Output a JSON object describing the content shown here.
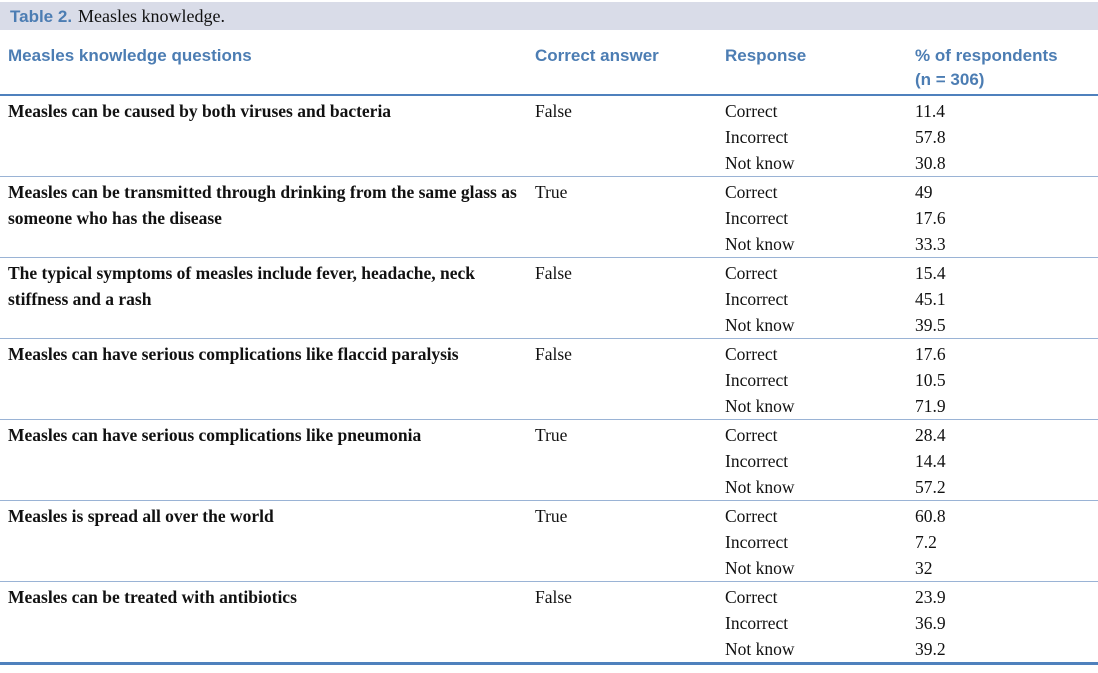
{
  "colors": {
    "accent_text": "#4c7db3",
    "rule_strong": "#4f81bd",
    "rule_light": "#9ab3d5",
    "caption_bg": "#d9dce8"
  },
  "caption": {
    "label": "Table 2.",
    "text": "Measles knowledge."
  },
  "table": {
    "headers": {
      "questions": "Measles knowledge questions",
      "correct_answer": "Correct answer",
      "response": "Response",
      "percent_line1": "% of respondents",
      "percent_line2": "(n = 306)"
    },
    "rows": [
      {
        "question": "Measles can be caused by both viruses and bacteria",
        "correct_answer": "False",
        "responses": [
          {
            "label": "Correct",
            "pct": "11.4"
          },
          {
            "label": "Incorrect",
            "pct": "57.8"
          },
          {
            "label": "Not know",
            "pct": "30.8"
          }
        ]
      },
      {
        "question": "Measles can be transmitted through drinking from the same glass as someone who has the disease",
        "correct_answer": "True",
        "responses": [
          {
            "label": "Correct",
            "pct": "49"
          },
          {
            "label": "Incorrect",
            "pct": "17.6"
          },
          {
            "label": "Not know",
            "pct": "33.3"
          }
        ]
      },
      {
        "question": "The typical symptoms of measles include fever, headache, neck stiffness and a rash",
        "correct_answer": "False",
        "responses": [
          {
            "label": "Correct",
            "pct": "15.4"
          },
          {
            "label": "Incorrect",
            "pct": "45.1"
          },
          {
            "label": "Not know",
            "pct": "39.5"
          }
        ]
      },
      {
        "question": "Measles can have serious complications like flaccid paralysis",
        "correct_answer": "False",
        "responses": [
          {
            "label": "Correct",
            "pct": "17.6"
          },
          {
            "label": "Incorrect",
            "pct": "10.5"
          },
          {
            "label": "Not know",
            "pct": "71.9"
          }
        ]
      },
      {
        "question": "Measles can have serious complications like pneumonia",
        "correct_answer": "True",
        "responses": [
          {
            "label": "Correct",
            "pct": "28.4"
          },
          {
            "label": "Incorrect",
            "pct": "14.4"
          },
          {
            "label": "Not know",
            "pct": "57.2"
          }
        ]
      },
      {
        "question": "Measles is spread all over the world",
        "correct_answer": "True",
        "responses": [
          {
            "label": "Correct",
            "pct": "60.8"
          },
          {
            "label": "Incorrect",
            "pct": "7.2"
          },
          {
            "label": "Not know",
            "pct": "32"
          }
        ]
      },
      {
        "question": "Measles can be treated with antibiotics",
        "correct_answer": "False",
        "responses": [
          {
            "label": "Correct",
            "pct": "23.9"
          },
          {
            "label": "Incorrect",
            "pct": "36.9"
          },
          {
            "label": "Not know",
            "pct": "39.2"
          }
        ]
      }
    ]
  }
}
